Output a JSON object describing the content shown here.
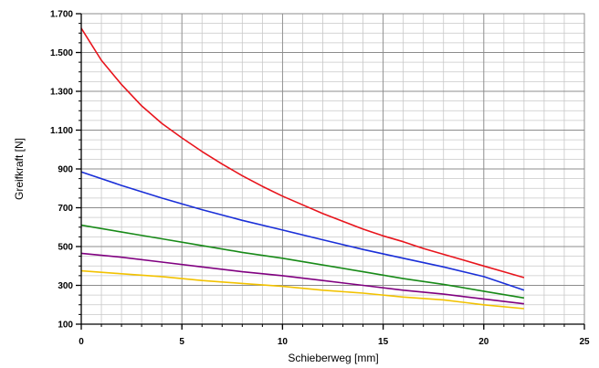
{
  "chart_data": {
    "type": "line",
    "xlabel": "Schieberweg [mm]",
    "ylabel": "Greifkraft [N]",
    "xlim": [
      0,
      25
    ],
    "ylim": [
      100,
      1700
    ],
    "x_ticks": [
      0,
      5,
      10,
      15,
      20,
      25
    ],
    "x_tick_labels": [
      "0",
      "5",
      "10",
      "15",
      "20",
      "25"
    ],
    "y_ticks": [
      100,
      300,
      500,
      700,
      900,
      1100,
      1300,
      1500,
      1700
    ],
    "y_tick_labels": [
      "100",
      "300",
      "500",
      "700",
      "900",
      "1.100",
      "1.300",
      "1.500",
      "1.700"
    ],
    "grid": true,
    "x_minor_step": 1,
    "y_minor_step": 50,
    "legend": "none",
    "series": [
      {
        "color": "#e8141c",
        "x": [
          0,
          1,
          2,
          3,
          4,
          5,
          6,
          7,
          8,
          9,
          10,
          11,
          12,
          13,
          14,
          15,
          16,
          17,
          18,
          19,
          20,
          21,
          22
        ],
        "values": [
          1625,
          1460,
          1335,
          1225,
          1135,
          1060,
          990,
          925,
          865,
          810,
          760,
          715,
          670,
          630,
          590,
          555,
          525,
          490,
          460,
          430,
          400,
          370,
          340
        ]
      },
      {
        "color": "#1a2fd8",
        "x": [
          0,
          2,
          4,
          6,
          8,
          10,
          12,
          14,
          16,
          18,
          20,
          22
        ],
        "values": [
          885,
          815,
          750,
          690,
          635,
          585,
          535,
          485,
          440,
          395,
          345,
          275
        ]
      },
      {
        "color": "#188a18",
        "x": [
          0,
          2,
          4,
          6,
          8,
          10,
          12,
          14,
          16,
          18,
          20,
          22
        ],
        "values": [
          610,
          575,
          540,
          505,
          470,
          440,
          405,
          370,
          335,
          305,
          270,
          235
        ]
      },
      {
        "color": "#800080",
        "x": [
          0,
          2,
          4,
          6,
          8,
          10,
          12,
          14,
          16,
          18,
          20,
          22
        ],
        "values": [
          465,
          445,
          420,
          395,
          370,
          350,
          325,
          300,
          275,
          255,
          230,
          205
        ]
      },
      {
        "color": "#f2c200",
        "x": [
          0,
          2,
          4,
          6,
          8,
          10,
          12,
          14,
          16,
          18,
          20,
          22
        ],
        "values": [
          375,
          360,
          345,
          325,
          310,
          295,
          275,
          260,
          240,
          225,
          200,
          180
        ]
      }
    ]
  }
}
